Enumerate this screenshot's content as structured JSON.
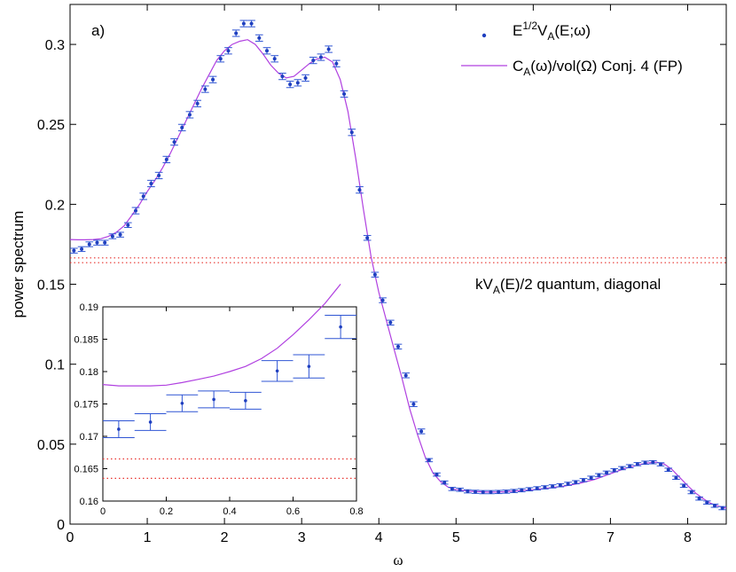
{
  "chart_data": [
    {
      "type": "scatter",
      "panel_label": "a)",
      "xlabel": "ω",
      "ylabel": "power spectrum",
      "xlim": [
        0,
        8.5
      ],
      "ylim": [
        0,
        0.325
      ],
      "x_ticks": [
        0,
        1,
        2,
        3,
        4,
        5,
        6,
        7,
        8
      ],
      "x_tick_labels": [
        "0",
        "1",
        "2",
        "3",
        "4",
        "5",
        "6",
        "7",
        "8"
      ],
      "y_ticks": [
        0,
        0.05,
        0.1,
        0.15,
        0.2,
        0.25,
        0.3
      ],
      "y_tick_labels": [
        "0",
        "0.05",
        "0.1",
        "0.15",
        "0.2",
        "0.25",
        "0.3"
      ],
      "grid": false,
      "legend_position": "top-right",
      "legend": {
        "points_base": "E",
        "points_exp": "1/2",
        "points_mid": "V",
        "points_sub": "A",
        "points_tail": "(E;ω)",
        "curve_base": "C",
        "curve_sub": "A",
        "curve_tail": "(ω)/vol(Ω) Conj. 4 (FP)"
      },
      "annotation": {
        "prefix": "kV",
        "sub": "A",
        "suffix": "(E)/2 quantum, diagonal"
      },
      "colors": {
        "points": "#1f3fbf",
        "errorbars": "#2f55d4",
        "curve": "#b040e0",
        "reference": "#e8332f"
      },
      "series": [
        {
          "kind": "points_with_errorbars",
          "x": [
            0.05,
            0.15,
            0.25,
            0.35,
            0.45,
            0.55,
            0.65,
            0.75,
            0.85,
            0.95,
            1.05,
            1.15,
            1.25,
            1.35,
            1.45,
            1.55,
            1.65,
            1.75,
            1.85,
            1.95,
            2.05,
            2.15,
            2.25,
            2.35,
            2.45,
            2.55,
            2.65,
            2.75,
            2.85,
            2.95,
            3.05,
            3.15,
            3.25,
            3.35,
            3.45,
            3.55,
            3.65,
            3.75,
            3.85,
            3.95,
            4.05,
            4.15,
            4.25,
            4.35,
            4.45,
            4.55,
            4.65,
            4.75,
            4.85,
            4.95,
            5.05,
            5.15,
            5.25,
            5.35,
            5.45,
            5.55,
            5.65,
            5.75,
            5.85,
            5.95,
            6.05,
            6.15,
            6.25,
            6.35,
            6.45,
            6.55,
            6.65,
            6.75,
            6.85,
            6.95,
            7.05,
            7.15,
            7.25,
            7.35,
            7.45,
            7.55,
            7.65,
            7.75,
            7.85,
            7.95,
            8.05,
            8.15,
            8.25,
            8.35,
            8.45
          ],
          "y": [
            0.171,
            0.172,
            0.175,
            0.176,
            0.176,
            0.18,
            0.181,
            0.187,
            0.196,
            0.205,
            0.213,
            0.218,
            0.228,
            0.239,
            0.248,
            0.256,
            0.263,
            0.272,
            0.278,
            0.291,
            0.296,
            0.307,
            0.313,
            0.313,
            0.304,
            0.296,
            0.291,
            0.28,
            0.275,
            0.276,
            0.279,
            0.29,
            0.292,
            0.297,
            0.288,
            0.269,
            0.245,
            0.209,
            0.179,
            0.156,
            0.14,
            0.126,
            0.111,
            0.093,
            0.075,
            0.058,
            0.04,
            0.031,
            0.026,
            0.022,
            0.0215,
            0.0205,
            0.0202,
            0.02,
            0.02,
            0.0201,
            0.0203,
            0.0207,
            0.0212,
            0.0218,
            0.0224,
            0.023,
            0.0236,
            0.0243,
            0.0252,
            0.0262,
            0.0275,
            0.029,
            0.0306,
            0.0322,
            0.0337,
            0.035,
            0.0362,
            0.0375,
            0.0384,
            0.0387,
            0.0374,
            0.034,
            0.029,
            0.024,
            0.02,
            0.016,
            0.0135,
            0.0115,
            0.01
          ],
          "yerr": [
            0.0015,
            0.0015,
            0.0015,
            0.0015,
            0.0015,
            0.0015,
            0.0015,
            0.0015,
            0.002,
            0.002,
            0.002,
            0.002,
            0.002,
            0.002,
            0.002,
            0.002,
            0.002,
            0.002,
            0.002,
            0.002,
            0.002,
            0.002,
            0.002,
            0.002,
            0.002,
            0.002,
            0.002,
            0.002,
            0.002,
            0.002,
            0.002,
            0.002,
            0.002,
            0.002,
            0.002,
            0.002,
            0.002,
            0.002,
            0.0015,
            0.0015,
            0.0015,
            0.0015,
            0.0015,
            0.0015,
            0.0015,
            0.0015,
            0.001,
            0.001,
            0.001,
            0.001,
            0.001,
            0.001,
            0.001,
            0.001,
            0.001,
            0.001,
            0.001,
            0.001,
            0.001,
            0.001,
            0.001,
            0.001,
            0.001,
            0.001,
            0.001,
            0.001,
            0.001,
            0.001,
            0.001,
            0.001,
            0.001,
            0.001,
            0.001,
            0.001,
            0.001,
            0.001,
            0.001,
            0.001,
            0.001,
            0.001,
            0.001,
            0.001,
            0.001,
            0.001,
            0.001
          ],
          "xerr": 0.1
        },
        {
          "kind": "curve",
          "x": [
            0,
            0.1,
            0.2,
            0.3,
            0.4,
            0.5,
            0.6,
            0.7,
            0.8,
            0.9,
            1.0,
            1.1,
            1.2,
            1.3,
            1.4,
            1.5,
            1.6,
            1.7,
            1.8,
            1.9,
            2.0,
            2.1,
            2.2,
            2.3,
            2.4,
            2.5,
            2.6,
            2.7,
            2.8,
            2.9,
            3.0,
            3.1,
            3.2,
            3.3,
            3.4,
            3.5,
            3.6,
            3.7,
            3.8,
            3.9,
            4.0,
            4.1,
            4.2,
            4.3,
            4.4,
            4.5,
            4.6,
            4.7,
            4.8,
            4.9,
            5.0,
            5.2,
            5.4,
            5.5,
            5.6,
            5.8,
            6.0,
            6.2,
            6.4,
            6.6,
            6.8,
            7.0,
            7.2,
            7.4,
            7.5,
            7.6,
            7.7,
            7.8,
            7.9,
            8.0,
            8.1,
            8.2,
            8.3,
            8.4,
            8.5
          ],
          "y": [
            0.178,
            0.1778,
            0.1778,
            0.178,
            0.1785,
            0.18,
            0.1825,
            0.1865,
            0.193,
            0.2,
            0.208,
            0.215,
            0.223,
            0.232,
            0.242,
            0.252,
            0.262,
            0.272,
            0.281,
            0.29,
            0.296,
            0.3,
            0.302,
            0.303,
            0.3,
            0.294,
            0.287,
            0.282,
            0.279,
            0.28,
            0.284,
            0.288,
            0.291,
            0.292,
            0.289,
            0.278,
            0.258,
            0.229,
            0.197,
            0.167,
            0.145,
            0.127,
            0.109,
            0.091,
            0.072,
            0.056,
            0.042,
            0.032,
            0.0265,
            0.023,
            0.0215,
            0.0205,
            0.02,
            0.02,
            0.0202,
            0.0208,
            0.0215,
            0.0225,
            0.0238,
            0.0255,
            0.028,
            0.0315,
            0.035,
            0.0375,
            0.0384,
            0.0387,
            0.0375,
            0.034,
            0.029,
            0.024,
            0.0195,
            0.016,
            0.013,
            0.0112,
            0.01
          ]
        },
        {
          "kind": "reference_lines",
          "y": [
            0.1665,
            0.1635
          ],
          "style": "dotted"
        }
      ]
    },
    {
      "type": "scatter",
      "role": "inset",
      "xlim": [
        0,
        0.8
      ],
      "ylim": [
        0.16,
        0.19
      ],
      "x_ticks": [
        0,
        0.2,
        0.4,
        0.6,
        0.8
      ],
      "x_tick_labels": [
        "0",
        "0.2",
        "0.4",
        "0.6",
        "0.8"
      ],
      "y_ticks": [
        0.16,
        0.165,
        0.17,
        0.175,
        0.18,
        0.185,
        0.19
      ],
      "y_tick_labels": [
        "0.16",
        "0.165",
        "0.17",
        "0.175",
        "0.18",
        "0.185",
        "0.19"
      ],
      "series": [
        {
          "kind": "points_with_errorbars",
          "x": [
            0.05,
            0.15,
            0.25,
            0.35,
            0.45,
            0.55,
            0.65,
            0.75
          ],
          "y": [
            0.1711,
            0.1722,
            0.1751,
            0.1757,
            0.1755,
            0.1801,
            0.1808,
            0.1869
          ],
          "yerr": [
            0.0013,
            0.0013,
            0.0013,
            0.0013,
            0.0013,
            0.0016,
            0.0018,
            0.0018
          ],
          "xerr": 0.1
        },
        {
          "kind": "curve",
          "x": [
            0,
            0.05,
            0.1,
            0.15,
            0.2,
            0.25,
            0.3,
            0.35,
            0.4,
            0.45,
            0.5,
            0.55,
            0.6,
            0.65,
            0.7,
            0.75
          ],
          "y": [
            0.178,
            0.1778,
            0.1778,
            0.1778,
            0.1779,
            0.1783,
            0.1788,
            0.1793,
            0.18,
            0.1808,
            0.182,
            0.1836,
            0.1857,
            0.188,
            0.1905,
            0.1935
          ]
        },
        {
          "kind": "reference_lines",
          "y": [
            0.1665,
            0.1635
          ],
          "style": "dotted"
        }
      ]
    }
  ]
}
